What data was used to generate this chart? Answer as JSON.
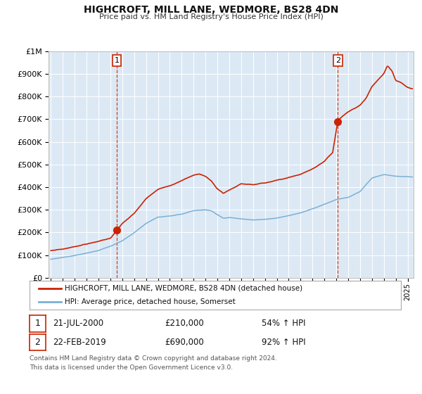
{
  "title": "HIGHCROFT, MILL LANE, WEDMORE, BS28 4DN",
  "subtitle": "Price paid vs. HM Land Registry's House Price Index (HPI)",
  "bg_color": "#dce9f5",
  "fig_bg_color": "#ffffff",
  "red_line_color": "#cc2200",
  "blue_line_color": "#7ab0d4",
  "sale1_date": "21-JUL-2000",
  "sale1_price": 210000,
  "sale1_hpi": "54% ↑ HPI",
  "sale1_year": 2000.55,
  "sale2_date": "22-FEB-2019",
  "sale2_price": 690000,
  "sale2_hpi": "92% ↑ HPI",
  "sale2_year": 2019.13,
  "ylim": [
    0,
    1000000
  ],
  "xlim": [
    1994.8,
    2025.5
  ],
  "legend1_label": "HIGHCROFT, MILL LANE, WEDMORE, BS28 4DN (detached house)",
  "legend2_label": "HPI: Average price, detached house, Somerset",
  "footer": "Contains HM Land Registry data © Crown copyright and database right 2024.\nThis data is licensed under the Open Government Licence v3.0."
}
